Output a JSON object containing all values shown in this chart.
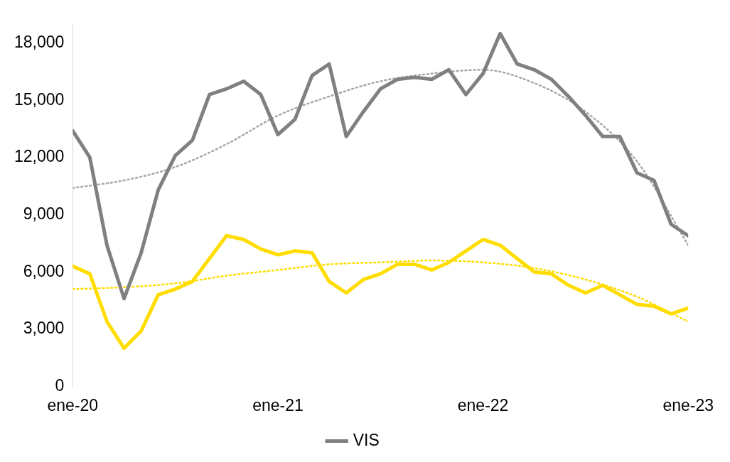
{
  "chart_data": {
    "type": "line",
    "x": [
      "2020-01",
      "2020-02",
      "2020-03",
      "2020-04",
      "2020-05",
      "2020-06",
      "2020-07",
      "2020-08",
      "2020-09",
      "2020-10",
      "2020-11",
      "2020-12",
      "2021-01",
      "2021-02",
      "2021-03",
      "2021-04",
      "2021-05",
      "2021-06",
      "2021-07",
      "2021-08",
      "2021-09",
      "2021-10",
      "2021-11",
      "2021-12",
      "2022-01",
      "2022-02",
      "2022-03",
      "2022-04",
      "2022-05",
      "2022-06",
      "2022-07",
      "2022-08",
      "2022-09",
      "2022-10",
      "2022-11",
      "2022-12",
      "2023-01"
    ],
    "series": [
      {
        "name": "VIS",
        "color": "#808080",
        "line_style": "solid",
        "values": [
          13400,
          12000,
          7400,
          4600,
          7000,
          10300,
          12100,
          12900,
          15300,
          15600,
          16000,
          15300,
          13200,
          14000,
          16300,
          16900,
          13100,
          14400,
          15600,
          16100,
          16200,
          16100,
          16600,
          15300,
          16400,
          18500,
          16900,
          16600,
          16100,
          15200,
          14200,
          13100,
          13100,
          11200,
          10800,
          8500,
          7900
        ]
      },
      {
        "color": "#ffdd00",
        "line_style": "solid",
        "values": [
          6300,
          5900,
          3400,
          2000,
          2900,
          4800,
          5100,
          5500,
          6700,
          7900,
          7700,
          7200,
          6900,
          7100,
          7000,
          5500,
          4900,
          5600,
          5900,
          6400,
          6400,
          6100,
          6500,
          7100,
          7700,
          7400,
          6700,
          6000,
          5900,
          5300,
          4900,
          5300,
          4800,
          4300,
          4200,
          3800,
          4100
        ]
      },
      {
        "color": "#a6a6a6",
        "line_style": "dotted",
        "x": [
          "2020-01",
          "2020-04",
          "2020-07",
          "2020-10",
          "2021-01",
          "2021-04",
          "2021-07",
          "2021-10",
          "2022-01",
          "2022-04",
          "2022-07",
          "2022-10",
          "2023-01"
        ],
        "values": [
          10400,
          10800,
          11500,
          12700,
          14200,
          15200,
          16000,
          16400,
          16600,
          15900,
          14400,
          11800,
          7400
        ]
      },
      {
        "color": "#ffdd00",
        "line_style": "dotted",
        "x": [
          "2020-01",
          "2020-04",
          "2020-07",
          "2020-10",
          "2021-01",
          "2021-04",
          "2021-07",
          "2021-10",
          "2022-01",
          "2022-04",
          "2022-07",
          "2022-10",
          "2023-01"
        ],
        "values": [
          5100,
          5200,
          5400,
          5800,
          6100,
          6400,
          6500,
          6600,
          6500,
          6200,
          5600,
          4700,
          3400
        ]
      }
    ],
    "xlim": [
      "2020-01",
      "2023-01"
    ],
    "xticks": [
      {
        "value": "2020-01",
        "label": "ene-20"
      },
      {
        "value": "2021-01",
        "label": "ene-21"
      },
      {
        "value": "2022-01",
        "label": "ene-22"
      },
      {
        "value": "2023-01",
        "label": "ene-23"
      }
    ],
    "ylim": [
      0,
      19000
    ],
    "yticks": [
      0,
      {
        "value": 3000,
        "label": "3,000"
      },
      {
        "value": 6000,
        "label": "6,000"
      },
      {
        "value": 9000,
        "label": "9,000"
      },
      {
        "value": 12000,
        "label": "12,000"
      },
      {
        "value": 15000,
        "label": "15,000"
      },
      {
        "value": 18000,
        "label": "18,000"
      }
    ],
    "grid": false,
    "legend": "bottom",
    "marker": "none"
  }
}
